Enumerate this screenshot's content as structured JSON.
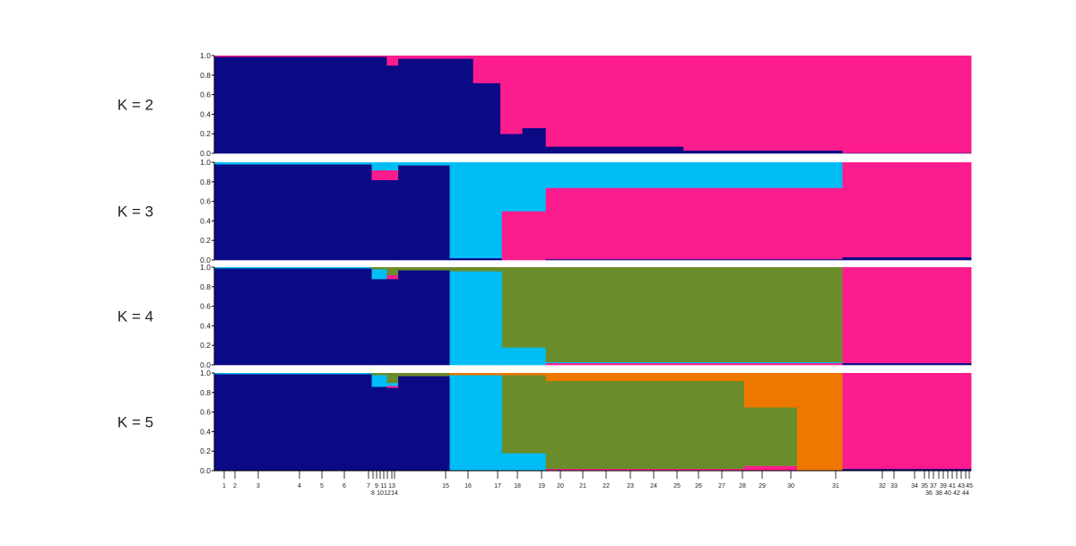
{
  "chart_data": {
    "type": "bar",
    "subtype": "stacked-admixture",
    "ylim": [
      0,
      1
    ],
    "yticks": [
      "0.0",
      "0.2",
      "0.4",
      "0.6",
      "0.8",
      "1.0"
    ],
    "colors": {
      "navy": "#0a0a84",
      "pink": "#fd1c8e",
      "cyan": "#00bdf5",
      "olive": "#6b8c2a",
      "orange": "#ee7700"
    },
    "population_labels_row1": [
      "1",
      "2",
      "3",
      "4",
      "5",
      "6",
      "7",
      "9",
      "11",
      "13",
      "15",
      "16",
      "17",
      "18",
      "19",
      "20",
      "21",
      "22",
      "23",
      "24",
      "25",
      "26",
      "27",
      "28",
      "29",
      "30",
      "31",
      "32",
      "33",
      "34",
      "35",
      "37",
      "39",
      "41",
      "43",
      "45"
    ],
    "population_labels_row2": [
      "8",
      "10",
      "12",
      "14",
      "36",
      "38",
      "40",
      "42",
      "44"
    ],
    "panels": [
      {
        "label": "K = 2",
        "segments": [
          {
            "from": 0.0,
            "to": 0.228,
            "values": [
              0.99,
              0.01
            ]
          },
          {
            "from": 0.228,
            "to": 0.243,
            "values": [
              0.9,
              0.1
            ]
          },
          {
            "from": 0.243,
            "to": 0.342,
            "values": [
              0.97,
              0.03
            ]
          },
          {
            "from": 0.342,
            "to": 0.378,
            "values": [
              0.72,
              0.28
            ]
          },
          {
            "from": 0.378,
            "to": 0.407,
            "values": [
              0.2,
              0.8
            ]
          },
          {
            "from": 0.407,
            "to": 0.438,
            "values": [
              0.26,
              0.74
            ]
          },
          {
            "from": 0.438,
            "to": 0.62,
            "values": [
              0.07,
              0.93
            ]
          },
          {
            "from": 0.62,
            "to": 0.83,
            "values": [
              0.03,
              0.97
            ]
          },
          {
            "from": 0.83,
            "to": 1.0,
            "values": [
              0.005,
              0.995
            ]
          }
        ]
      },
      {
        "label": "K = 3",
        "segments": [
          {
            "from": 0.0,
            "to": 0.208,
            "values": [
              0.98,
              0.0,
              0.02
            ]
          },
          {
            "from": 0.208,
            "to": 0.243,
            "values": [
              0.82,
              0.1,
              0.08
            ]
          },
          {
            "from": 0.243,
            "to": 0.311,
            "values": [
              0.97,
              0.0,
              0.03
            ]
          },
          {
            "from": 0.311,
            "to": 0.38,
            "values": [
              0.02,
              0.0,
              0.98
            ]
          },
          {
            "from": 0.38,
            "to": 0.438,
            "values": [
              0.0,
              0.5,
              0.5
            ]
          },
          {
            "from": 0.438,
            "to": 0.83,
            "values": [
              0.01,
              0.73,
              0.26
            ]
          },
          {
            "from": 0.83,
            "to": 1.0,
            "values": [
              0.03,
              0.97,
              0.0
            ]
          }
        ]
      },
      {
        "label": "K = 4",
        "segments": [
          {
            "from": 0.0,
            "to": 0.208,
            "values": [
              0.99,
              0.0,
              0.01,
              0.0
            ]
          },
          {
            "from": 0.208,
            "to": 0.228,
            "values": [
              0.88,
              0.0,
              0.1,
              0.02
            ]
          },
          {
            "from": 0.228,
            "to": 0.243,
            "values": [
              0.88,
              0.04,
              0.0,
              0.08
            ]
          },
          {
            "from": 0.243,
            "to": 0.311,
            "values": [
              0.97,
              0.0,
              0.0,
              0.03
            ]
          },
          {
            "from": 0.311,
            "to": 0.38,
            "values": [
              0.0,
              0.0,
              0.96,
              0.04
            ]
          },
          {
            "from": 0.38,
            "to": 0.438,
            "values": [
              0.0,
              0.0,
              0.18,
              0.82
            ]
          },
          {
            "from": 0.438,
            "to": 0.83,
            "values": [
              0.0,
              0.02,
              0.01,
              0.97
            ]
          },
          {
            "from": 0.83,
            "to": 1.0,
            "values": [
              0.02,
              0.98,
              0.0,
              0.0
            ]
          }
        ]
      },
      {
        "label": "K = 5",
        "segments": [
          {
            "from": 0.0,
            "to": 0.208,
            "values": [
              0.99,
              0.0,
              0.01,
              0.0,
              0.0
            ]
          },
          {
            "from": 0.208,
            "to": 0.228,
            "values": [
              0.86,
              0.0,
              0.12,
              0.02,
              0.0
            ]
          },
          {
            "from": 0.228,
            "to": 0.243,
            "values": [
              0.85,
              0.02,
              0.03,
              0.1,
              0.0
            ]
          },
          {
            "from": 0.243,
            "to": 0.311,
            "values": [
              0.97,
              0.0,
              0.0,
              0.03,
              0.0
            ]
          },
          {
            "from": 0.311,
            "to": 0.38,
            "values": [
              0.0,
              0.0,
              0.98,
              0.0,
              0.02
            ]
          },
          {
            "from": 0.38,
            "to": 0.438,
            "values": [
              0.0,
              0.0,
              0.18,
              0.8,
              0.02
            ]
          },
          {
            "from": 0.438,
            "to": 0.7,
            "values": [
              0.0,
              0.02,
              0.0,
              0.9,
              0.08
            ]
          },
          {
            "from": 0.7,
            "to": 0.77,
            "values": [
              0.0,
              0.05,
              0.0,
              0.6,
              0.35
            ]
          },
          {
            "from": 0.77,
            "to": 0.83,
            "values": [
              0.0,
              0.0,
              0.0,
              0.0,
              1.0
            ]
          },
          {
            "from": 0.83,
            "to": 1.0,
            "values": [
              0.02,
              0.98,
              0.0,
              0.0,
              0.0
            ]
          }
        ]
      }
    ]
  }
}
